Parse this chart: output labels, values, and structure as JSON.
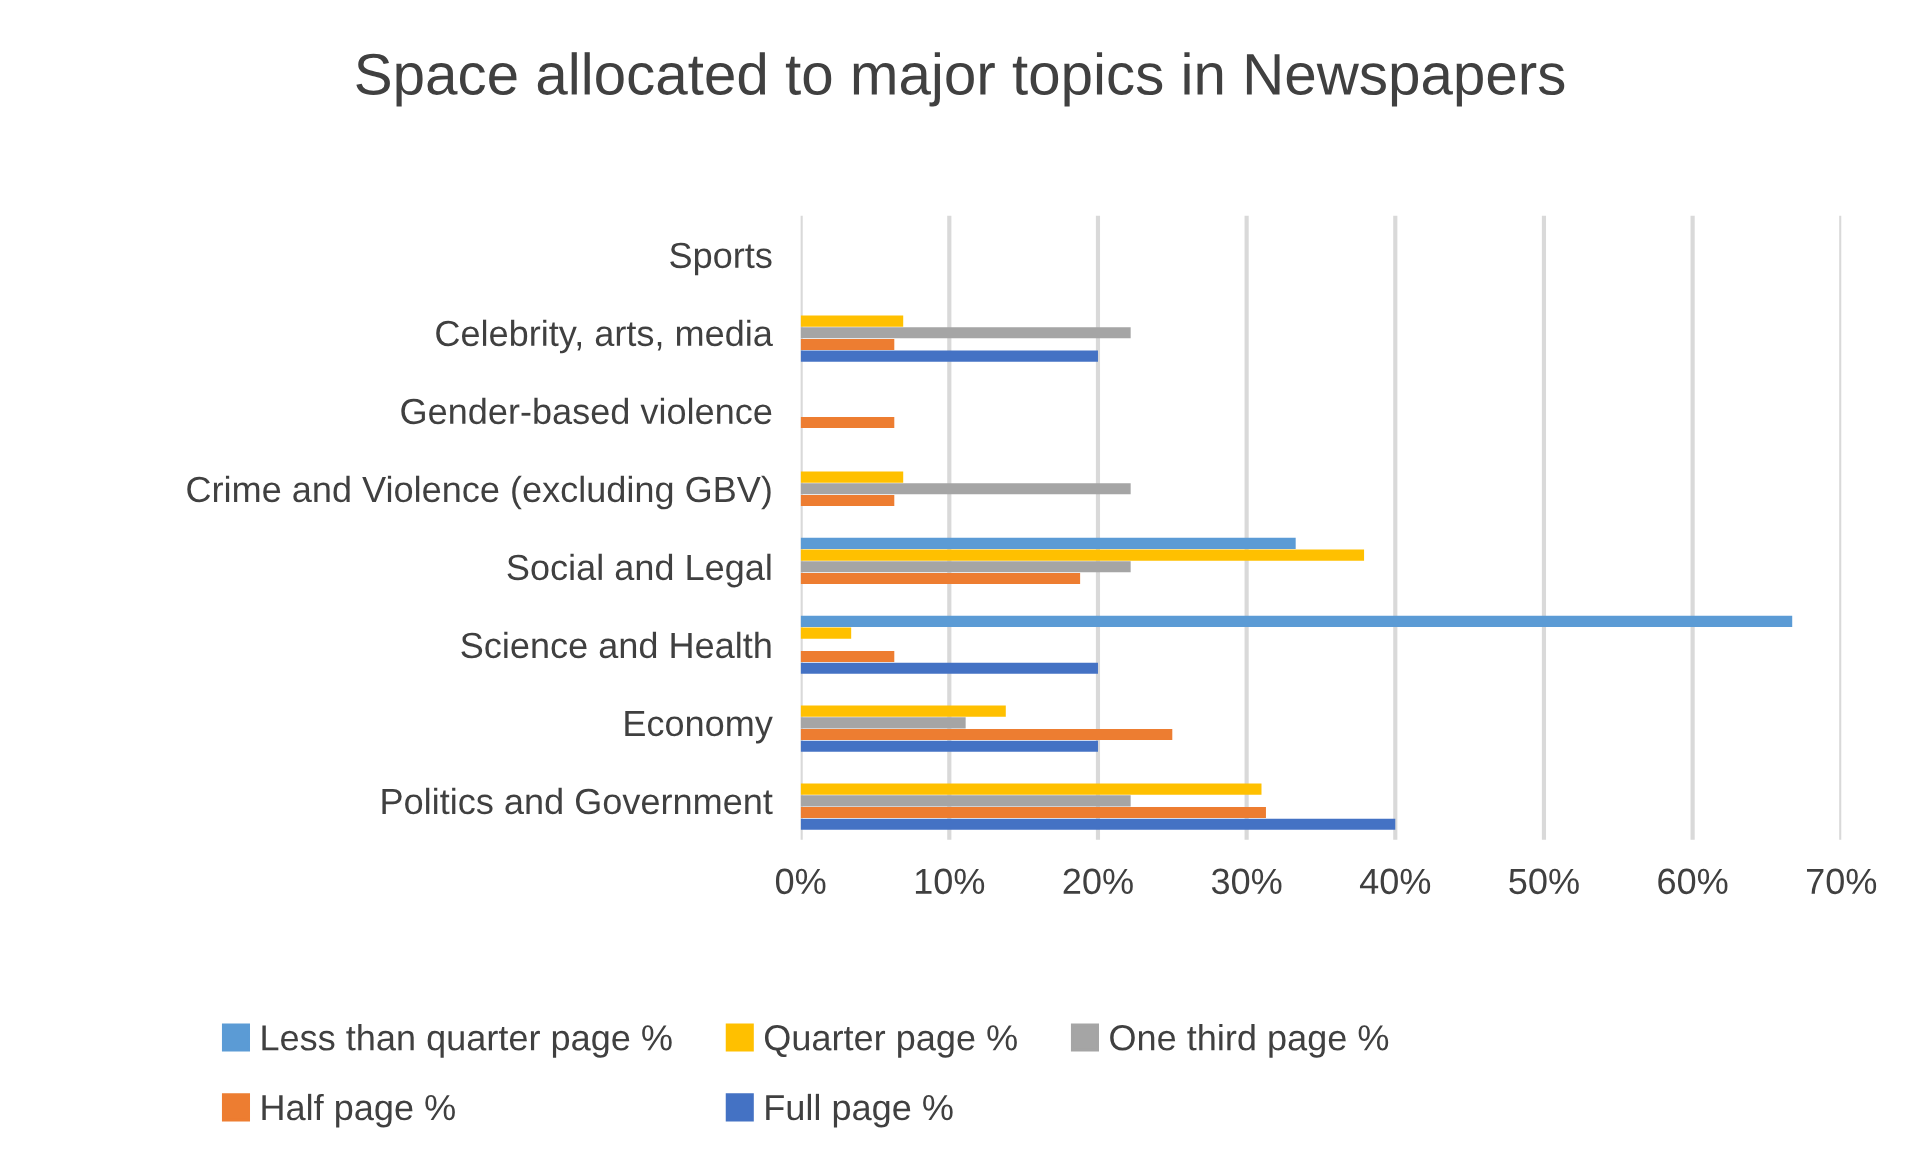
{
  "chart_data": {
    "type": "bar",
    "orientation": "horizontal",
    "title": "Space allocated to major topics in Newspapers",
    "categories": [
      "Sports",
      "Celebrity, arts, media",
      "Gender-based violence",
      "Crime and Violence (excluding GBV)",
      "Social and Legal",
      "Science and Health",
      "Economy",
      "Politics and Government"
    ],
    "series": [
      {
        "name": "Less than quarter page %",
        "color": "#5b9bd5",
        "values": [
          null,
          null,
          null,
          null,
          33.3,
          66.7,
          null,
          null
        ]
      },
      {
        "name": "Quarter page %",
        "color": "#ffc000",
        "values": [
          null,
          6.9,
          null,
          6.9,
          37.9,
          3.4,
          13.8,
          31.0
        ]
      },
      {
        "name": "One third page %",
        "color": "#a5a5a5",
        "values": [
          null,
          22.2,
          null,
          22.2,
          22.2,
          null,
          11.1,
          22.2
        ]
      },
      {
        "name": "Half page %",
        "color": "#ed7d31",
        "values": [
          null,
          6.3,
          6.3,
          6.3,
          18.8,
          6.3,
          25.0,
          31.3
        ]
      },
      {
        "name": "Full page %",
        "color": "#4472c4",
        "values": [
          null,
          20,
          null,
          null,
          null,
          20,
          20,
          40
        ]
      }
    ],
    "xlim": [
      0,
      70
    ],
    "xticks": [
      {
        "value": 0,
        "label": "0%"
      },
      {
        "value": 10,
        "label": "10%"
      },
      {
        "value": 20,
        "label": "20%"
      },
      {
        "value": 30,
        "label": "30%"
      },
      {
        "value": 40,
        "label": "40%"
      },
      {
        "value": 50,
        "label": "50%"
      },
      {
        "value": 60,
        "label": "60%"
      },
      {
        "value": 70,
        "label": "70%"
      }
    ],
    "grid": "x",
    "legend": "bottom"
  }
}
